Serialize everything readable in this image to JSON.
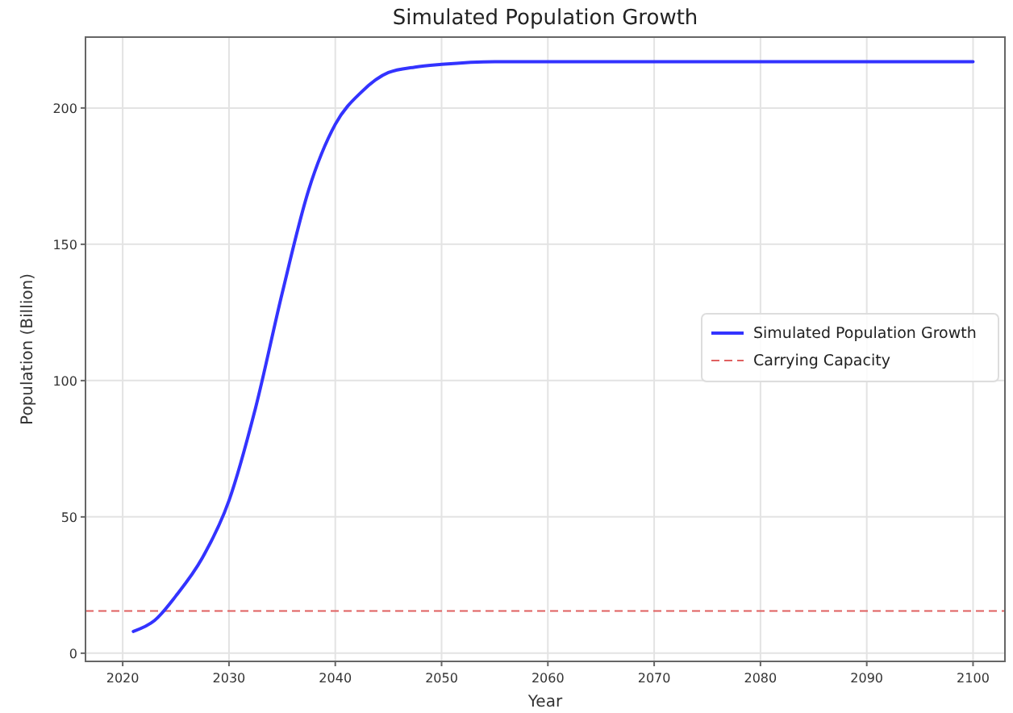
{
  "chart_data": {
    "type": "line",
    "title": "Simulated Population Growth",
    "xlabel": "Year",
    "ylabel": "Population (Billion)",
    "series": [
      {
        "name": "Simulated Population Growth",
        "color": "#3333ff",
        "line_style": "solid",
        "x": [
          2021,
          2023,
          2025,
          2027.5,
          2030,
          2032.5,
          2035,
          2037.5,
          2040,
          2042.5,
          2045,
          2047.5,
          2050,
          2055,
          2060,
          2070,
          2080,
          2090,
          2100
        ],
        "values": [
          8,
          12,
          21,
          35,
          56,
          90,
          132,
          170,
          194,
          206,
          213,
          215,
          216,
          217,
          217,
          217,
          217,
          217,
          217
        ]
      }
    ],
    "ref_lines": [
      {
        "axis": "y",
        "value": 15.5,
        "label": "Carrying Capacity",
        "color": "#e06060",
        "line_style": "dashed"
      }
    ],
    "xlim": [
      2016.5,
      2103
    ],
    "ylim": [
      -3,
      226
    ],
    "xticks": [
      2020,
      2030,
      2040,
      2050,
      2060,
      2070,
      2080,
      2090,
      2100
    ],
    "yticks": [
      0,
      50,
      100,
      150,
      200
    ],
    "grid": true,
    "legend": "right"
  }
}
